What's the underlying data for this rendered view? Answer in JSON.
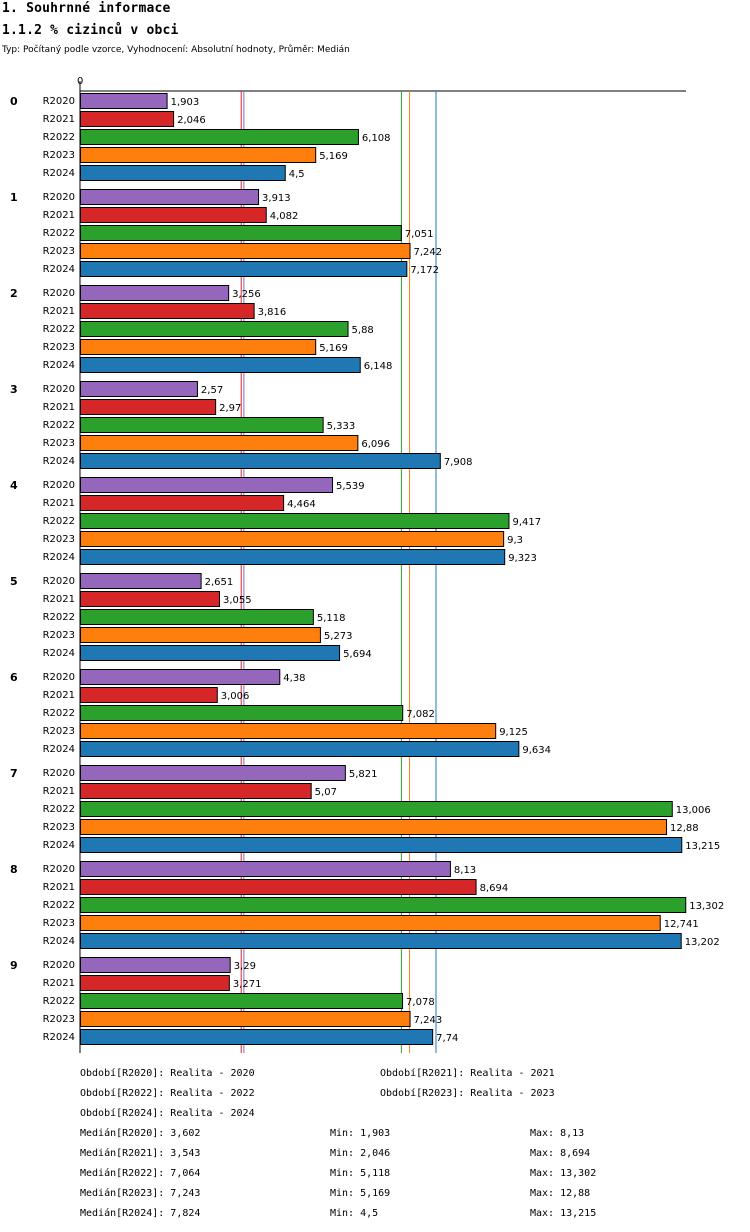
{
  "header": {
    "title": "1. Souhrnné informace",
    "subtitle": "1.1.2 % cizinců v obci",
    "info": "Typ: Počítaný podle vzorce, Vyhodnocení: Absolutní hodnoty, Průměr: Medián"
  },
  "chart_data": {
    "type": "bar",
    "orientation": "horizontal",
    "axis_zero_label": "0",
    "groups": [
      "0",
      "1",
      "2",
      "3",
      "4",
      "5",
      "6",
      "7",
      "8",
      "9"
    ],
    "series": [
      {
        "name": "R2020",
        "color": "#9467bd",
        "values": [
          1.903,
          3.913,
          3.256,
          2.57,
          5.539,
          2.651,
          4.38,
          5.821,
          8.13,
          3.29
        ],
        "labels": [
          "1,903",
          "3,913",
          "3,256",
          "2,57",
          "5,539",
          "2,651",
          "4,38",
          "5,821",
          "8,13",
          "3,29"
        ]
      },
      {
        "name": "R2021",
        "color": "#d62728",
        "values": [
          2.046,
          4.082,
          3.816,
          2.97,
          4.464,
          3.055,
          3.006,
          5.07,
          8.694,
          3.271
        ],
        "labels": [
          "2,046",
          "4,082",
          "3,816",
          "2,97",
          "4,464",
          "3,055",
          "3,006",
          "5,07",
          "8,694",
          "3,271"
        ]
      },
      {
        "name": "R2022",
        "color": "#2ca02c",
        "values": [
          6.108,
          7.051,
          5.88,
          5.333,
          9.417,
          5.118,
          7.082,
          13.006,
          13.302,
          7.078
        ],
        "labels": [
          "6,108",
          "7,051",
          "5,88",
          "5,333",
          "9,417",
          "5,118",
          "7,082",
          "13,006",
          "13,302",
          "7,078"
        ]
      },
      {
        "name": "R2023",
        "color": "#ff7f0e",
        "values": [
          5.169,
          7.242,
          5.169,
          6.096,
          9.3,
          5.273,
          9.125,
          12.88,
          12.741,
          7.243
        ],
        "labels": [
          "5,169",
          "7,242",
          "5,169",
          "6,096",
          "9,3",
          "5,273",
          "9,125",
          "12,88",
          "12,741",
          "7,243"
        ]
      },
      {
        "name": "R2024",
        "color": "#1f77b4",
        "values": [
          4.5,
          7.172,
          6.148,
          7.908,
          9.323,
          5.694,
          9.634,
          13.215,
          13.202,
          7.74
        ],
        "labels": [
          "4,5",
          "7,172",
          "6,148",
          "7,908",
          "9,323",
          "5,694",
          "9,634",
          "13,215",
          "13,202",
          "7,74"
        ]
      }
    ],
    "median_lines": [
      {
        "series": "R2020",
        "value": 3.602,
        "color": "#9467bd"
      },
      {
        "series": "R2021",
        "value": 3.543,
        "color": "#d62728"
      },
      {
        "series": "R2022",
        "value": 7.064,
        "color": "#2ca02c"
      },
      {
        "series": "R2023",
        "value": 7.243,
        "color": "#ff7f0e"
      },
      {
        "series": "R2024",
        "value": 7.824,
        "color": "#1f77b4"
      }
    ],
    "xlim": [
      0,
      13.5
    ]
  },
  "legend": {
    "periods": [
      "Období[R2020]: Realita - 2020",
      "Období[R2021]: Realita - 2021",
      "Období[R2022]: Realita - 2022",
      "Období[R2023]: Realita - 2023",
      "Období[R2024]: Realita - 2024"
    ],
    "stats": [
      {
        "median": "Medián[R2020]: 3,602",
        "min": "Min: 1,903",
        "max": "Max: 8,13"
      },
      {
        "median": "Medián[R2021]: 3,543",
        "min": "Min: 2,046",
        "max": "Max: 8,694"
      },
      {
        "median": "Medián[R2022]: 7,064",
        "min": "Min: 5,118",
        "max": "Max: 13,302"
      },
      {
        "median": "Medián[R2023]: 7,243",
        "min": "Min: 5,169",
        "max": "Max: 12,88"
      },
      {
        "median": "Medián[R2024]: 7,824",
        "min": "Min: 4,5",
        "max": "Max: 13,215"
      }
    ]
  }
}
